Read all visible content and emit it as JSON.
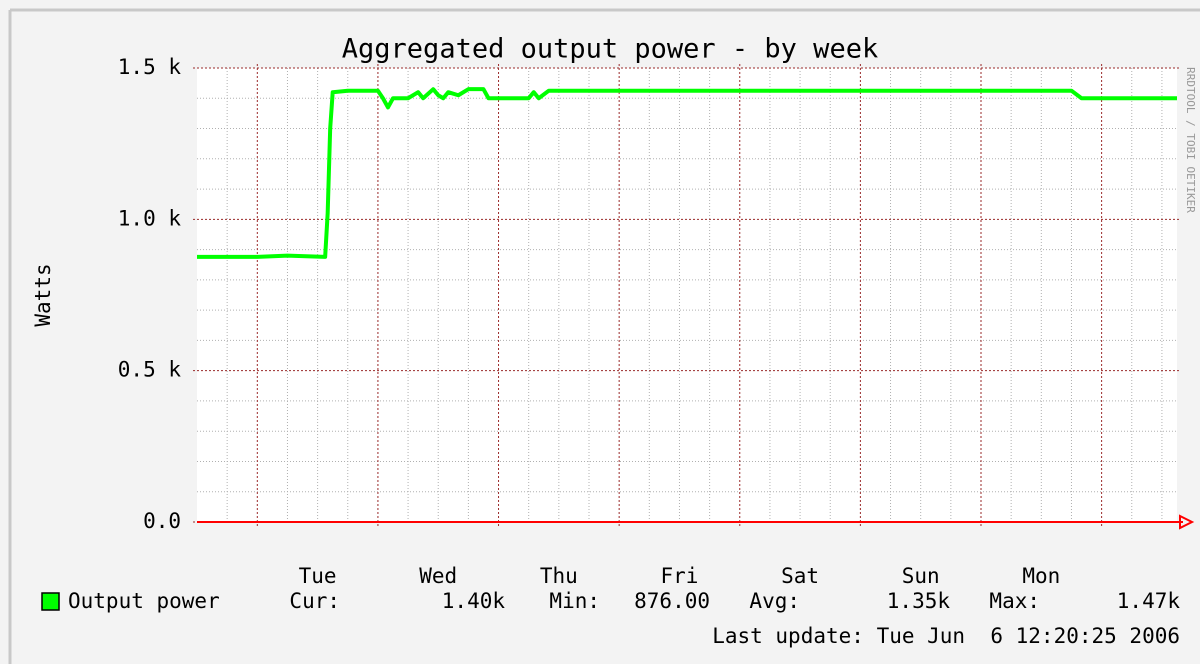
{
  "chart_data": {
    "type": "line",
    "title": "Aggregated output power - by week",
    "ylabel": "Watts",
    "side_text": "RRDTOOL / TOBI OETIKER",
    "last_update": "Last update: Tue Jun  6 12:20:25 2006",
    "xlim": [
      0,
      195
    ],
    "ylim": [
      0,
      1500
    ],
    "yticks": [
      {
        "value": 0,
        "label": "0.0"
      },
      {
        "value": 500,
        "label": "0.5 k"
      },
      {
        "value": 1000,
        "label": "1.0 k"
      },
      {
        "value": 1500,
        "label": "1.5 k"
      }
    ],
    "yminor_ticks": [
      100,
      200,
      300,
      400,
      600,
      700,
      800,
      900,
      1100,
      1200,
      1300,
      1400
    ],
    "xticks": [
      {
        "value": 24,
        "label": "Tue"
      },
      {
        "value": 48,
        "label": "Wed"
      },
      {
        "value": 72,
        "label": "Thu"
      },
      {
        "value": 96,
        "label": "Fri"
      },
      {
        "value": 120,
        "label": "Sat"
      },
      {
        "value": 144,
        "label": "Sun"
      },
      {
        "value": 168,
        "label": "Mon"
      }
    ],
    "xmajor_grid": [
      12,
      36,
      60,
      84,
      108,
      132,
      156,
      180
    ],
    "xminor_ticks": [
      6,
      18,
      24,
      30,
      42,
      48,
      54,
      66,
      72,
      78,
      90,
      96,
      102,
      114,
      120,
      126,
      138,
      144,
      150,
      162,
      168,
      174,
      186,
      192
    ],
    "grid": true,
    "series": [
      {
        "name": "Output power",
        "color": "#00ff00",
        "x": [
          0,
          12,
          18,
          25.5,
          26,
          26.5,
          27,
          30,
          36,
          37,
          38,
          39,
          42,
          44,
          45,
          47,
          48,
          49,
          50,
          52,
          54,
          57,
          58,
          66,
          67,
          68,
          70,
          72,
          174,
          176,
          195
        ],
        "values": [
          876,
          876,
          880,
          876,
          1020,
          1300,
          1420,
          1425,
          1425,
          1400,
          1370,
          1400,
          1400,
          1420,
          1400,
          1430,
          1410,
          1400,
          1420,
          1410,
          1430,
          1430,
          1400,
          1400,
          1420,
          1400,
          1425,
          1425,
          1425,
          1400,
          1400
        ]
      }
    ],
    "stats": [
      {
        "label": "Cur:",
        "value": "1.40k"
      },
      {
        "label": "Min:",
        "value": "876.00"
      },
      {
        "label": "Avg:",
        "value": "1.35k"
      },
      {
        "label": "Max:",
        "value": "1.47k"
      }
    ]
  }
}
